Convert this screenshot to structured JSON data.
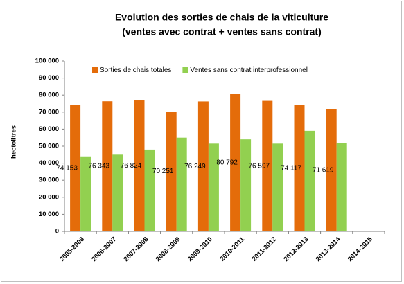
{
  "chart_data": {
    "type": "bar",
    "title": [
      "Evolution des sorties de chais de la viticulture",
      "(ventes avec contrat + ventes sans contrat)"
    ],
    "ylabel": "hectolitres",
    "categories": [
      "2005-2006",
      "2006-2007",
      "2007-2008",
      "2008-2009",
      "2009-2010",
      "2010-2011",
      "2011-2012",
      "2012-2013",
      "2013-2014",
      "2014-2015"
    ],
    "series": [
      {
        "name": "Sorties de chais totales",
        "color": "#e46c0a",
        "values": [
          74153,
          76343,
          76824,
          70251,
          76249,
          80792,
          76597,
          74117,
          71619,
          null
        ],
        "value_labels": [
          "74 153",
          "76 343",
          "76 824",
          "70 251",
          "76 249",
          "80 792",
          "76 597",
          "74 117",
          "71 619",
          null
        ]
      },
      {
        "name": "Ventes sans contrat interprofessionnel",
        "color": "#92d050",
        "values": [
          44000,
          45000,
          48000,
          55000,
          51500,
          54000,
          51500,
          59000,
          52000,
          null
        ]
      }
    ],
    "ylim": [
      0,
      100000
    ],
    "yticks": [
      0,
      {
        "value": 10000,
        "label": "10 000"
      },
      {
        "value": 20000,
        "label": "20 000"
      },
      {
        "value": 30000,
        "label": "30 000"
      },
      {
        "value": 40000,
        "label": "40 000"
      },
      {
        "value": 50000,
        "label": "50 000"
      },
      {
        "value": 60000,
        "label": "60 000"
      },
      {
        "value": 70000,
        "label": "70 000"
      },
      {
        "value": 80000,
        "label": "80 000"
      },
      {
        "value": 90000,
        "label": "90 000"
      },
      {
        "value": 100000,
        "label": "100 000"
      }
    ],
    "grid": false,
    "legend": "top"
  }
}
